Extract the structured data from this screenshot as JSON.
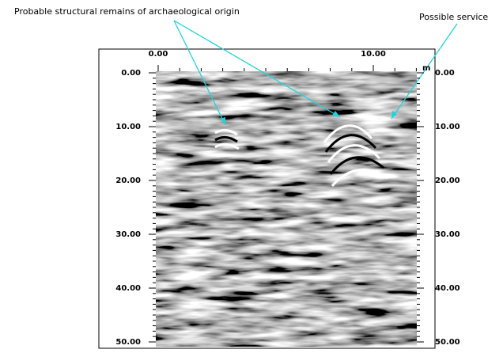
{
  "annotations": [
    {
      "text": "Probable structural remains of archaeological origin"
    },
    {
      "text": "Possible service"
    }
  ],
  "x_axis": {
    "unit": "m",
    "ticks": [
      {
        "value": 0,
        "label": "0.00"
      },
      {
        "value": 10,
        "label": "10.00"
      }
    ]
  },
  "y_axis": {
    "ticks": [
      {
        "value": 0,
        "label": "0.00"
      },
      {
        "value": 10,
        "label": "10.00"
      },
      {
        "value": 20,
        "label": "20.00"
      },
      {
        "value": 30,
        "label": "30.00"
      },
      {
        "value": 40,
        "label": "40.00"
      },
      {
        "value": 50,
        "label": "50.00"
      }
    ]
  }
}
